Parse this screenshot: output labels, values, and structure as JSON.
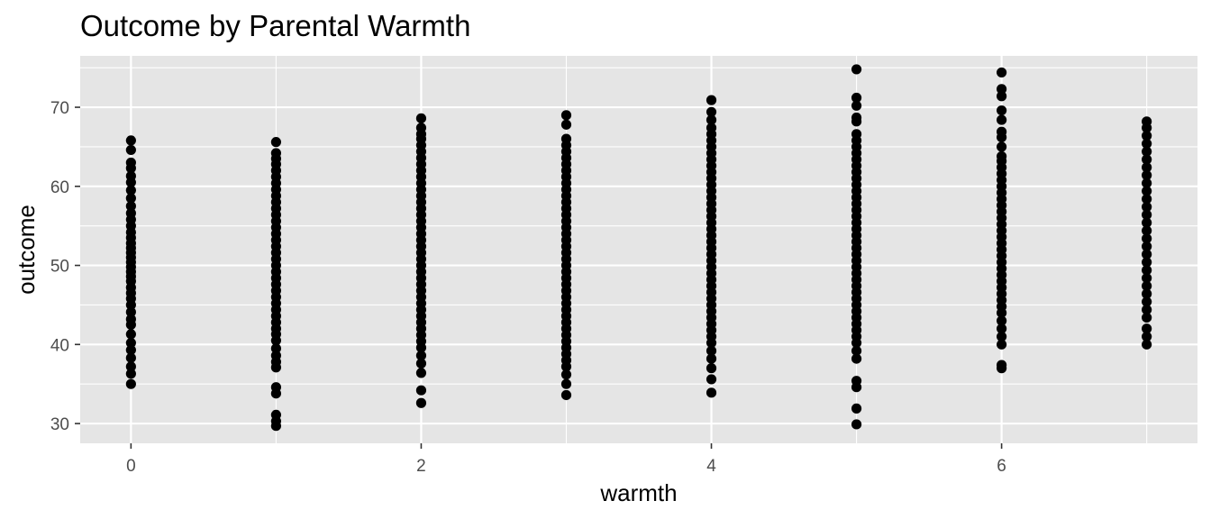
{
  "chart_data": {
    "type": "scatter",
    "title": "Outcome by Parental Warmth",
    "xlabel": "warmth",
    "ylabel": "outcome",
    "xlim": [
      -0.35,
      7.35
    ],
    "ylim": [
      27.5,
      76.5
    ],
    "x_ticks": [
      0,
      2,
      4,
      6
    ],
    "y_ticks": [
      30,
      40,
      50,
      60,
      70
    ],
    "grid": true,
    "colors": {
      "panel": "#E5E5E5",
      "grid": "#FFFFFF",
      "point": "#000000"
    },
    "series": [
      {
        "x": 0,
        "values": [
          35,
          36.3,
          37.2,
          38.3,
          39.3,
          40.2,
          41.3,
          42.5,
          43.2,
          44.1,
          45,
          45.8,
          46.5,
          47.2,
          48,
          48.6,
          49.2,
          49.8,
          50.4,
          51,
          51.6,
          52.2,
          52.8,
          53.5,
          54.2,
          55,
          55.8,
          56.6,
          57.5,
          58.5,
          59.5,
          60.5,
          61.3,
          62.3,
          63,
          64.6,
          65.8
        ]
      },
      {
        "x": 1,
        "values": [
          29.7,
          30.3,
          31.1,
          33.8,
          34.6,
          37.1,
          37.8,
          38.6,
          39.5,
          40.5,
          41.3,
          42,
          42.8,
          43.6,
          44.4,
          45.2,
          46,
          46.8,
          47.6,
          48.4,
          49.2,
          50,
          50.8,
          51.6,
          52.4,
          53.2,
          54,
          54.8,
          55.6,
          56.4,
          57.2,
          58,
          58.8,
          59.6,
          60.4,
          61.2,
          62,
          62.8,
          63.5,
          64.2,
          65.6
        ]
      },
      {
        "x": 2,
        "values": [
          32.6,
          34.2,
          36.4,
          37.6,
          38.6,
          39.6,
          40.4,
          41.2,
          42,
          42.8,
          43.6,
          44.4,
          45.2,
          46,
          46.8,
          47.6,
          48.4,
          49.2,
          50,
          50.8,
          51.6,
          52.4,
          53.2,
          54,
          54.8,
          55.6,
          56.4,
          57.2,
          58,
          58.8,
          59.6,
          60.4,
          61.2,
          62,
          62.8,
          63.6,
          64.4,
          65.2,
          66,
          66.6,
          67.4,
          68.6
        ]
      },
      {
        "x": 3,
        "values": [
          33.6,
          35,
          36.2,
          37.2,
          38,
          38.8,
          39.6,
          40.4,
          41.2,
          42,
          42.8,
          43.6,
          44.4,
          45.2,
          46,
          46.8,
          47.6,
          48.4,
          49.2,
          50,
          50.8,
          51.6,
          52.4,
          53.2,
          54,
          54.8,
          55.6,
          56.4,
          57.2,
          58,
          58.8,
          59.6,
          60.4,
          61.2,
          62,
          62.8,
          63.6,
          64.4,
          65.2,
          66,
          67.8,
          69
        ]
      },
      {
        "x": 4,
        "values": [
          33.9,
          35.6,
          37,
          38.2,
          39.2,
          40.2,
          41,
          41.8,
          42.6,
          43.4,
          44.2,
          45,
          45.8,
          46.6,
          47.4,
          48.2,
          49,
          49.8,
          50.6,
          51.4,
          52.2,
          53,
          53.8,
          54.6,
          55.4,
          56.2,
          57,
          57.8,
          58.6,
          59.4,
          60.2,
          61,
          61.8,
          62.6,
          63.4,
          64.2,
          65,
          65.8,
          66.6,
          67.4,
          68.4,
          69.4,
          70.9
        ]
      },
      {
        "x": 5,
        "values": [
          29.9,
          31.9,
          34.6,
          35.4,
          38.2,
          39.2,
          40.2,
          41,
          41.8,
          42.6,
          43.4,
          44.2,
          45,
          45.8,
          46.6,
          47.4,
          48.2,
          49,
          49.8,
          50.6,
          51.4,
          52.2,
          53,
          53.8,
          54.6,
          55.4,
          56.2,
          57,
          57.8,
          58.6,
          59.4,
          60.2,
          61,
          61.8,
          62.6,
          63.4,
          64.2,
          65,
          65.8,
          66.6,
          68.2,
          68.7,
          70.2,
          71.2,
          74.8
        ]
      },
      {
        "x": 6,
        "values": [
          37,
          37.4,
          40,
          41,
          42,
          43,
          44,
          44.8,
          45.6,
          46.4,
          47.2,
          48,
          48.8,
          49.6,
          50.4,
          51.2,
          52,
          52.8,
          53.6,
          54.4,
          55.2,
          56,
          56.8,
          57.6,
          58.4,
          59.2,
          60,
          60.8,
          61.6,
          62.4,
          63.2,
          63.8,
          65,
          66.2,
          66.9,
          68.4,
          69.6,
          71.4,
          72.3,
          74.4
        ]
      },
      {
        "x": 7,
        "values": [
          40,
          41,
          42,
          43.4,
          44.4,
          45.4,
          46.4,
          47.4,
          48.4,
          49.4,
          50.4,
          51.4,
          52.4,
          53.4,
          54.4,
          55.4,
          56.4,
          57.4,
          58.4,
          59.4,
          60.4,
          61.4,
          62.4,
          63.4,
          64.4,
          65.4,
          66.4,
          67.4,
          68.2
        ]
      }
    ]
  }
}
